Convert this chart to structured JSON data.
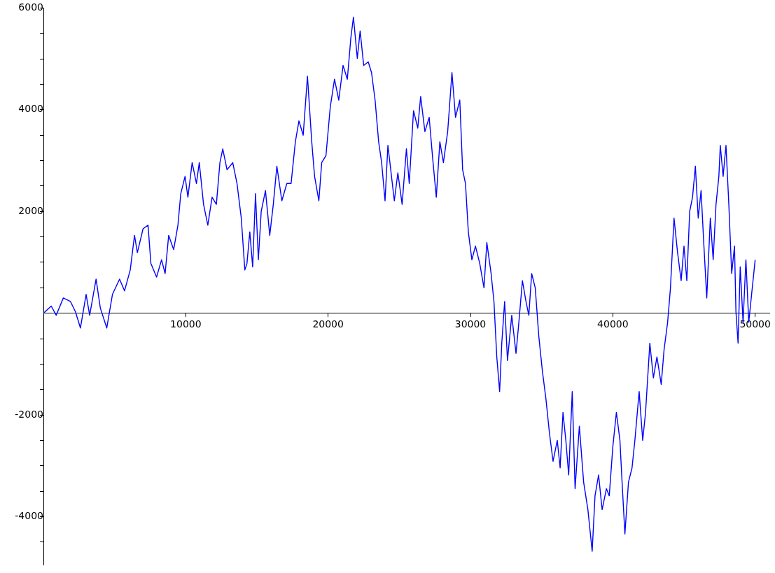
{
  "chart_data": {
    "type": "line",
    "xlim": [
      0,
      51000
    ],
    "ylim": [
      -4950,
      6000
    ],
    "xticks": [
      10000,
      20000,
      30000,
      40000,
      50000
    ],
    "yticks": [
      {
        "value": -4500,
        "label": null
      },
      -4000,
      {
        "value": -3500,
        "label": null
      },
      {
        "value": -3000,
        "label": null
      },
      {
        "value": -2500,
        "label": null
      },
      -2000,
      {
        "value": -1500,
        "label": null
      },
      {
        "value": -1000,
        "label": null
      },
      {
        "value": -500,
        "label": null
      },
      {
        "value": 500,
        "label": null
      },
      {
        "value": 1000,
        "label": null
      },
      {
        "value": 1500,
        "label": null
      },
      2000,
      {
        "value": 2500,
        "label": null
      },
      {
        "value": 3000,
        "label": null
      },
      {
        "value": 3500,
        "label": null
      },
      4000,
      {
        "value": 4500,
        "label": null
      },
      {
        "value": 5000,
        "label": null
      },
      {
        "value": 5500,
        "label": null
      },
      6000
    ],
    "grid": false,
    "legend": false,
    "marker": "none",
    "line_style": "solid",
    "series": [
      {
        "color": "#0000ff",
        "x": [
          0,
          550,
          900,
          1400,
          1900,
          2250,
          2600,
          3000,
          3250,
          3700,
          4000,
          4450,
          4850,
          5350,
          5700,
          6100,
          6400,
          6600,
          7000,
          7350,
          7550,
          7950,
          8300,
          8550,
          8800,
          9150,
          9450,
          9650,
          9950,
          10150,
          10450,
          10750,
          10950,
          11250,
          11550,
          11850,
          12150,
          12400,
          12600,
          12900,
          13300,
          13600,
          13900,
          14150,
          14300,
          14500,
          14700,
          14900,
          15100,
          15300,
          15600,
          15900,
          16150,
          16400,
          16750,
          17100,
          17400,
          17700,
          17950,
          18250,
          18550,
          18850,
          19050,
          19350,
          19550,
          19850,
          20150,
          20450,
          20750,
          21050,
          21350,
          21600,
          21780,
          22050,
          22250,
          22500,
          22820,
          23050,
          23300,
          23550,
          23760,
          24000,
          24200,
          24400,
          24650,
          24900,
          25200,
          25500,
          25700,
          26000,
          26300,
          26500,
          26800,
          27100,
          27350,
          27600,
          27850,
          28100,
          28400,
          28700,
          28950,
          29250,
          29450,
          29650,
          29850,
          30100,
          30350,
          30650,
          30950,
          31150,
          31450,
          31650,
          31850,
          32050,
          32200,
          32400,
          32600,
          32900,
          33200,
          33400,
          33650,
          33900,
          34100,
          34300,
          34550,
          34800,
          35050,
          35300,
          35550,
          35800,
          36100,
          36300,
          36500,
          36700,
          36900,
          37150,
          37350,
          37650,
          37950,
          38250,
          38550,
          38750,
          39000,
          39250,
          39550,
          39750,
          40000,
          40250,
          40500,
          40650,
          40850,
          41100,
          41350,
          41550,
          41850,
          42100,
          42300,
          42600,
          42850,
          43100,
          43400,
          43600,
          43850,
          44050,
          44300,
          44550,
          44800,
          45000,
          45200,
          45400,
          45600,
          45800,
          46000,
          46200,
          46400,
          46600,
          46850,
          47050,
          47250,
          47450,
          47550,
          47750,
          47950,
          48150,
          48350,
          48550,
          48650,
          48800,
          48950,
          49150,
          49350,
          49550,
          49750,
          50000
        ],
        "values": [
          0,
          140,
          -40,
          300,
          230,
          30,
          -290,
          370,
          -40,
          670,
          100,
          -290,
          370,
          670,
          440,
          850,
          1530,
          1190,
          1660,
          1730,
          980,
          710,
          1050,
          780,
          1530,
          1250,
          1730,
          2350,
          2690,
          2280,
          2960,
          2550,
          2960,
          2140,
          1730,
          2280,
          2140,
          2960,
          3230,
          2820,
          2960,
          2550,
          1870,
          850,
          980,
          1600,
          910,
          2350,
          1050,
          2000,
          2410,
          1530,
          2140,
          2890,
          2210,
          2550,
          2550,
          3370,
          3780,
          3500,
          4660,
          3370,
          2690,
          2210,
          2960,
          3100,
          4050,
          4600,
          4190,
          4870,
          4600,
          5420,
          5820,
          5010,
          5550,
          4870,
          4940,
          4730,
          4190,
          3370,
          2960,
          2210,
          3300,
          2820,
          2210,
          2760,
          2140,
          3230,
          2550,
          3980,
          3640,
          4260,
          3570,
          3850,
          3030,
          2280,
          3370,
          2960,
          3570,
          4730,
          3850,
          4190,
          2820,
          2550,
          1600,
          1050,
          1320,
          980,
          500,
          1390,
          780,
          230,
          -860,
          -1540,
          -590,
          230,
          -930,
          -40,
          -790,
          -180,
          640,
          230,
          -40,
          780,
          500,
          -450,
          -1130,
          -1680,
          -2360,
          -2910,
          -2500,
          -3040,
          -1950,
          -2500,
          -3180,
          -1540,
          -3450,
          -2220,
          -3320,
          -3860,
          -4680,
          -3590,
          -3180,
          -3860,
          -3450,
          -3590,
          -2630,
          -1950,
          -2500,
          -3320,
          -4340,
          -3320,
          -3040,
          -2500,
          -1540,
          -2500,
          -1950,
          -590,
          -1270,
          -860,
          -1400,
          -720,
          -180,
          500,
          1870,
          1190,
          640,
          1320,
          640,
          2000,
          2280,
          2890,
          1870,
          2410,
          1320,
          300,
          1870,
          1050,
          2140,
          2690,
          3300,
          2690,
          3300,
          2140,
          780,
          1320,
          30,
          -590,
          910,
          -180,
          1050,
          -180,
          370,
          1050
        ]
      }
    ]
  }
}
